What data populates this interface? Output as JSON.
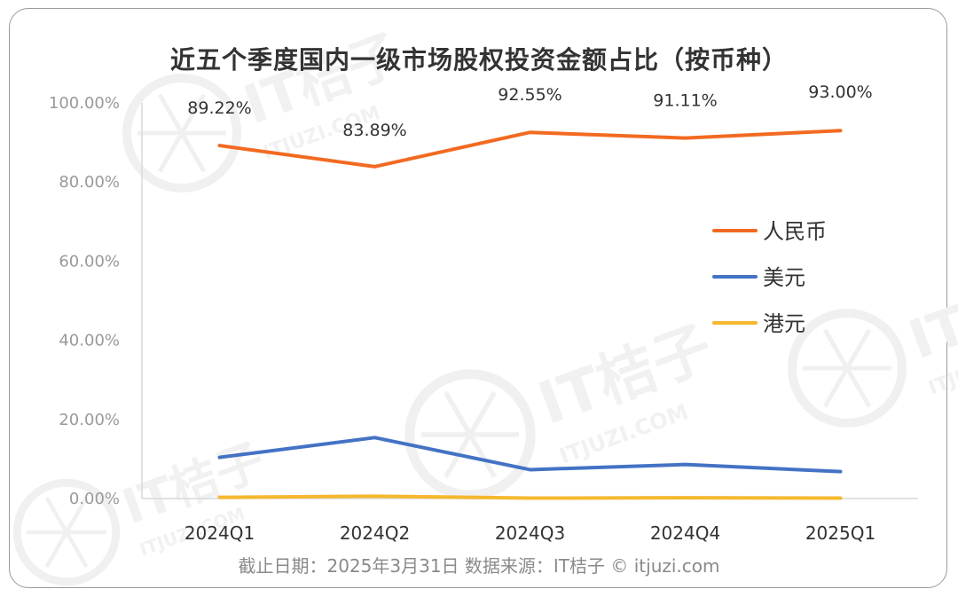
{
  "chart_data": {
    "type": "line",
    "title": "近五个季度国内一级市场股权投资金额占比（按币种）",
    "categories": [
      "2024Q1",
      "2024Q2",
      "2024Q3",
      "2024Q4",
      "2025Q1"
    ],
    "series": [
      {
        "name": "人民币",
        "color": "#f26a21",
        "values": [
          89.22,
          83.89,
          92.55,
          91.11,
          93.0
        ],
        "data_labels": [
          "89.22%",
          "83.89%",
          "92.55%",
          "91.11%",
          "93.00%"
        ]
      },
      {
        "name": "美元",
        "color": "#4472c4",
        "values": [
          10.4,
          15.4,
          7.3,
          8.6,
          6.8
        ]
      },
      {
        "name": "港元",
        "color": "#f5b82e",
        "values": [
          0.3,
          0.6,
          0.1,
          0.2,
          0.1
        ]
      }
    ],
    "ylim": [
      0,
      100
    ],
    "yticks": [
      "0.00%",
      "20.00%",
      "40.00%",
      "60.00%",
      "80.00%",
      "100.00%"
    ],
    "ytick_values": [
      0,
      20,
      40,
      60,
      80,
      100
    ],
    "legend_position": "right",
    "grid": false
  },
  "watermark": "IT桔子",
  "watermark_sub": "ITJUZI.COM",
  "footer": "截止日期：2025年3月31日    数据来源：IT桔子 © itjuzi.com"
}
